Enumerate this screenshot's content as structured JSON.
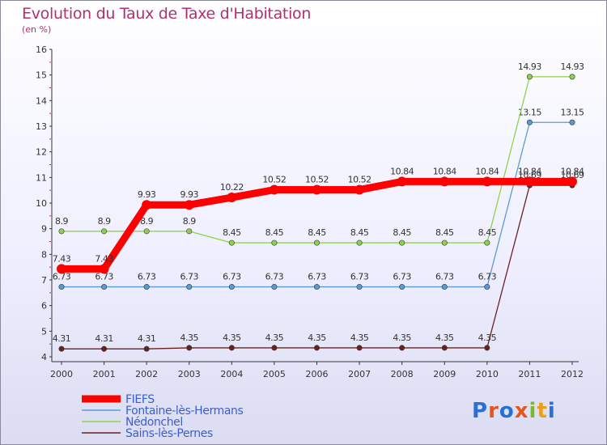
{
  "title": "Evolution du Taux de Taxe d'Habitation",
  "subtitle": "(en %)",
  "logo": {
    "text": "Proxiti",
    "letters": [
      "P",
      "r",
      "o",
      "x",
      "i",
      "t",
      "i"
    ],
    "colors": [
      "#2a6fd6",
      "#e8551a",
      "#2a6fd6",
      "#e8551a",
      "#7ab92c",
      "#e8a01a",
      "#2a6fd6"
    ]
  },
  "chart_data": {
    "type": "line",
    "x": [
      "2000",
      "2001",
      "2002",
      "2003",
      "2004",
      "2005",
      "2006",
      "2007",
      "2008",
      "2009",
      "2010",
      "2011",
      "2012"
    ],
    "ylim": [
      4,
      16
    ],
    "yticks": [
      "4",
      "5",
      "6",
      "7",
      "8",
      "9",
      "10",
      "11",
      "12",
      "13",
      "14",
      "15",
      "16"
    ],
    "grid": false,
    "legend_position": "bottom-left",
    "series": [
      {
        "name": "Sains-lès-Pernes",
        "color": "#6b2020",
        "values": [
          4.31,
          4.31,
          4.31,
          4.35,
          4.35,
          4.35,
          4.35,
          4.35,
          4.35,
          4.35,
          4.35,
          10.69,
          10.69
        ],
        "labels": [
          "4.31",
          "4.31",
          "4.31",
          "4.35",
          "4.35",
          "4.35",
          "4.35",
          "4.35",
          "4.35",
          "4.35",
          "4.35",
          "10.69",
          "10.69"
        ]
      },
      {
        "name": "Fontaine-lès-Hermans",
        "color": "#5b9bd0",
        "values": [
          6.73,
          6.73,
          6.73,
          6.73,
          6.73,
          6.73,
          6.73,
          6.73,
          6.73,
          6.73,
          6.73,
          13.15,
          13.15
        ],
        "labels": [
          "6.73",
          "6.73",
          "6.73",
          "6.73",
          "6.73",
          "6.73",
          "6.73",
          "6.73",
          "6.73",
          "6.73",
          "6.73",
          "13.15",
          "13.15"
        ]
      },
      {
        "name": "Nédonchel",
        "color": "#8fd14f",
        "values": [
          8.9,
          8.9,
          8.9,
          8.9,
          8.45,
          8.45,
          8.45,
          8.45,
          8.45,
          8.45,
          8.45,
          14.93,
          14.93
        ],
        "labels": [
          "8.9",
          "8.9",
          "8.9",
          "8.9",
          "8.45",
          "8.45",
          "8.45",
          "8.45",
          "8.45",
          "8.45",
          "8.45",
          "14.93",
          "14.93"
        ]
      },
      {
        "name": "FIEFS",
        "color": "#ff0000",
        "values": [
          7.43,
          7.43,
          9.93,
          9.93,
          10.22,
          10.52,
          10.52,
          10.52,
          10.84,
          10.84,
          10.84,
          10.84,
          10.84
        ],
        "labels": [
          "7.43",
          "7.43",
          "9.93",
          "9.93",
          "10.22",
          "10.52",
          "10.52",
          "10.52",
          "10.84",
          "10.84",
          "10.84",
          "10.84",
          "10.84"
        ]
      }
    ],
    "legend_order": [
      "FIEFS",
      "Fontaine-lès-Hermans",
      "Nédonchel",
      "Sains-lès-Pernes"
    ]
  }
}
